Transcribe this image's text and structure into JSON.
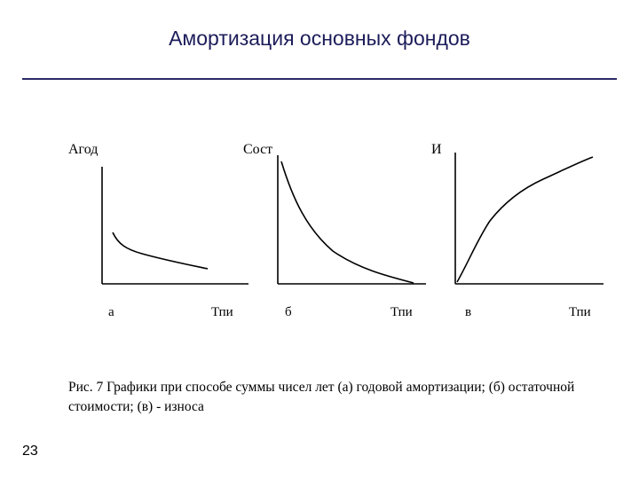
{
  "slide": {
    "title": "Амортизация основных фондов",
    "page_number": "23"
  },
  "figure": {
    "caption": "Рис. 7 Графики при способе суммы чисел лет (а) годовой амортизации; (б) остаточной стоимости; (в) - износа",
    "panels": [
      {
        "y_label": "Агод",
        "letter": "а",
        "x_label": "Тпи",
        "curve": "decreasing"
      },
      {
        "y_label": "Сост",
        "letter": "б",
        "x_label": "Тпи",
        "curve": "decreasing-to-zero"
      },
      {
        "y_label": "И",
        "letter": "в",
        "x_label": "Тпи",
        "curve": "increasing"
      }
    ]
  }
}
